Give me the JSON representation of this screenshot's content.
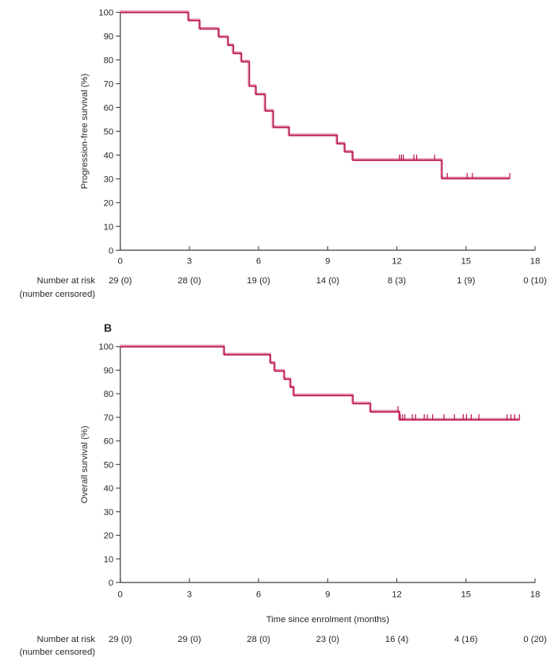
{
  "figure": {
    "risk_header_line1": "Number at risk",
    "risk_header_line2": "(number censored)",
    "x_axis_label": "Time since enrolment (months)",
    "colors": {
      "curve": "#b81556",
      "curve_echo": "#e2879e",
      "axis": "#414042",
      "text": "#2b2628"
    }
  },
  "chart_data": [
    {
      "type": "line",
      "subtype": "kaplan_meier_step",
      "panel_label": "",
      "title": "",
      "ylabel": "Progression-free survival (%)",
      "xlabel": "",
      "xlim": [
        0,
        18
      ],
      "ylim": [
        0,
        100
      ],
      "xticks": [
        0,
        3,
        6,
        9,
        12,
        15,
        18
      ],
      "yticks": [
        0,
        10,
        20,
        30,
        40,
        50,
        60,
        70,
        80,
        90,
        100
      ],
      "grid": false,
      "legend": "none",
      "steps_time_percent": [
        [
          0,
          100
        ],
        [
          2.95,
          96.6
        ],
        [
          3.44,
          93.1
        ],
        [
          4.27,
          89.7
        ],
        [
          4.67,
          86.2
        ],
        [
          4.9,
          82.8
        ],
        [
          5.25,
          79.3
        ],
        [
          5.59,
          69.0
        ],
        [
          5.88,
          65.5
        ],
        [
          6.28,
          58.6
        ],
        [
          6.63,
          51.7
        ],
        [
          7.32,
          48.3
        ],
        [
          9.4,
          44.8
        ],
        [
          9.73,
          41.4
        ],
        [
          10.08,
          37.9
        ],
        [
          13.95,
          30.2
        ]
      ],
      "end_time": 16.9,
      "censor_marks_time_percent": [
        [
          12.11,
          37.9
        ],
        [
          12.2,
          37.9
        ],
        [
          12.28,
          37.9
        ],
        [
          12.74,
          37.9
        ],
        [
          12.86,
          37.9
        ],
        [
          13.64,
          37.9
        ],
        [
          14.19,
          30.2
        ],
        [
          15.05,
          30.2
        ],
        [
          15.28,
          30.2
        ],
        [
          16.9,
          30.2
        ]
      ],
      "number_at_risk": {
        "times": [
          0,
          3,
          6,
          9,
          12,
          15,
          18
        ],
        "values": [
          "29 (0)",
          "28 (0)",
          "19 (0)",
          "14 (0)",
          "8 (3)",
          "1 (9)",
          "0 (10)"
        ]
      }
    },
    {
      "type": "line",
      "subtype": "kaplan_meier_step",
      "panel_label": "B",
      "title": "",
      "ylabel": "Overall survival (%)",
      "xlabel": "Time since enrolment (months)",
      "xlim": [
        0,
        18
      ],
      "ylim": [
        0,
        100
      ],
      "xticks": [
        0,
        3,
        6,
        9,
        12,
        15,
        18
      ],
      "yticks": [
        0,
        10,
        20,
        30,
        40,
        50,
        60,
        70,
        80,
        90,
        100
      ],
      "grid": false,
      "legend": "none",
      "steps_time_percent": [
        [
          0,
          100
        ],
        [
          4.5,
          96.6
        ],
        [
          6.51,
          93.1
        ],
        [
          6.69,
          89.7
        ],
        [
          7.11,
          86.2
        ],
        [
          7.38,
          82.8
        ],
        [
          7.52,
          79.3
        ],
        [
          10.09,
          75.9
        ],
        [
          10.85,
          72.4
        ],
        [
          12.11,
          69.0
        ]
      ],
      "end_time": 17.32,
      "censor_marks_time_percent": [
        [
          12.05,
          72.4
        ],
        [
          12.15,
          69.0
        ],
        [
          12.25,
          69.0
        ],
        [
          12.35,
          69.0
        ],
        [
          12.67,
          69.0
        ],
        [
          12.81,
          69.0
        ],
        [
          13.19,
          69.0
        ],
        [
          13.32,
          69.0
        ],
        [
          13.55,
          69.0
        ],
        [
          14.05,
          69.0
        ],
        [
          14.5,
          69.0
        ],
        [
          14.88,
          69.0
        ],
        [
          15.02,
          69.0
        ],
        [
          15.23,
          69.0
        ],
        [
          15.56,
          69.0
        ],
        [
          16.78,
          69.0
        ],
        [
          16.95,
          69.0
        ],
        [
          17.11,
          69.0
        ],
        [
          17.32,
          69.0
        ]
      ],
      "number_at_risk": {
        "times": [
          0,
          3,
          6,
          9,
          12,
          15,
          18
        ],
        "values": [
          "29 (0)",
          "29 (0)",
          "28 (0)",
          "23 (0)",
          "16 (4)",
          "4 (16)",
          "0 (20)"
        ]
      }
    }
  ]
}
